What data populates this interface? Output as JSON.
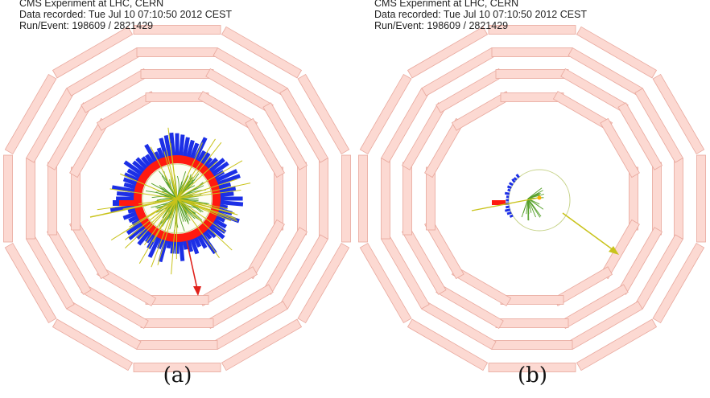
{
  "panels": [
    {
      "info": {
        "experiment": "CMS Experiment at LHC, CERN",
        "recorded": "Data recorded: Tue Jul 10 07:10:50 2012 CEST",
        "run_event": "Run/Event: 198609 / 2821429"
      },
      "caption": "(a)"
    },
    {
      "info": {
        "experiment": "CMS Experiment at LHC, CERN",
        "recorded": "Data recorded: Tue Jul 10 07:10:50 2012 CEST",
        "run_event": "Run/Event: 198609 / 2821429"
      },
      "caption": "(b)"
    }
  ],
  "colors": {
    "muon_chamber_fill": "#fcd9d2",
    "muon_chamber_stroke": "#e8a79c",
    "hcal_tower": "#1c2fe6",
    "ecal_tower": "#ff1a10",
    "tracks": "#55a02a",
    "jet_lines": "#c9c31b",
    "met_arrow_a": "#e0201a",
    "met_arrow_b": "#c9c31b",
    "tracker_circle": "#c7d38a"
  }
}
